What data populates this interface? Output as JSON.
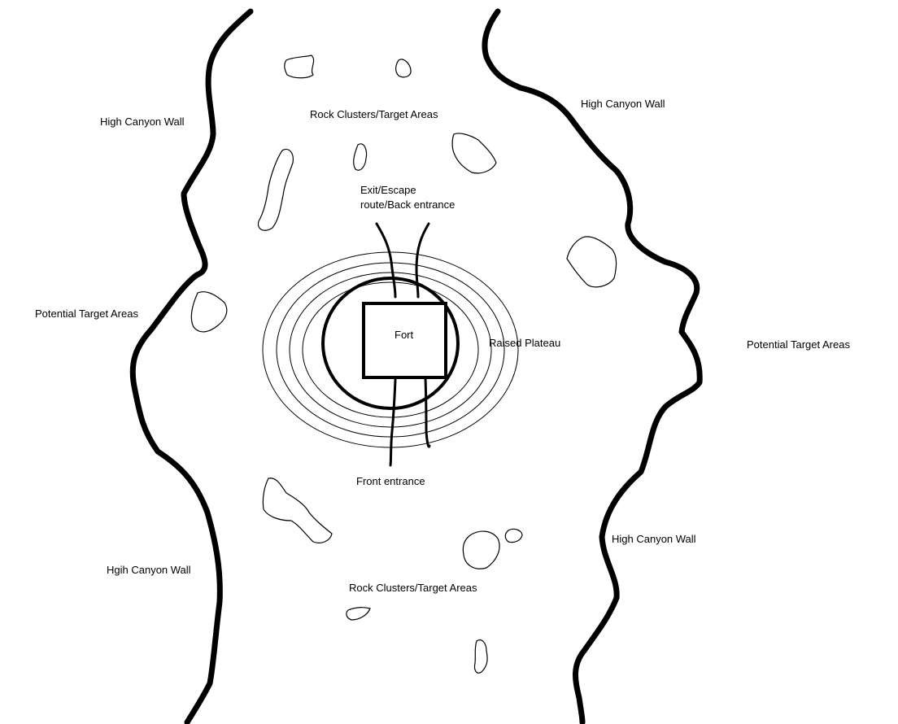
{
  "labels": {
    "left_wall_top": "High Canyon Wall",
    "left_wall_bottom": "Hgih Canyon Wall",
    "right_wall_top": "High Canyon Wall",
    "right_wall_bottom": "High Canyon Wall",
    "left_targets": "Potential Target Areas",
    "right_targets": "Potential Target Areas",
    "rocks_top": "Rock Clusters/Target Areas",
    "rocks_bottom": "Rock Clusters/Target Areas",
    "exit_line1": "Exit/Escape",
    "exit_line2": "route/Back entrance",
    "front_entrance": "Front entrance",
    "fort": "Fort",
    "plateau": "Raised Plateau"
  }
}
